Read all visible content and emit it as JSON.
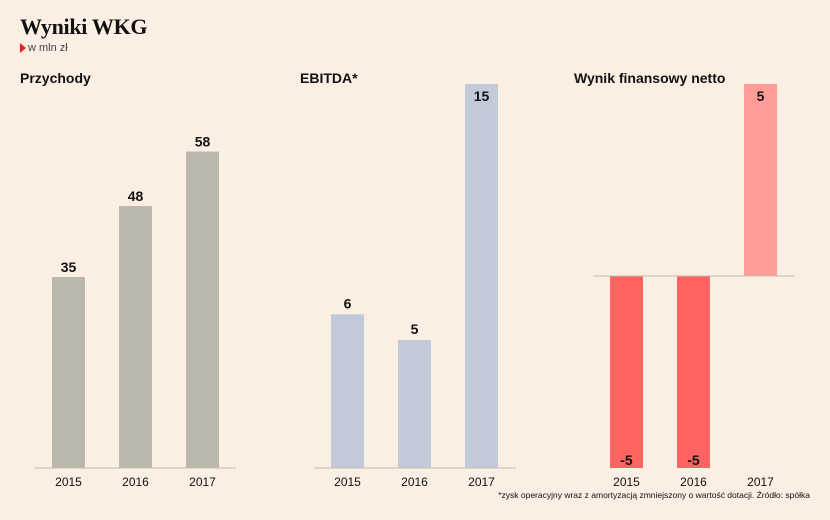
{
  "title": "Wyniki WKG",
  "subtitle": "w mln zł",
  "footnote": "*zysk operacyjny wraz z amortyzacją zmniejszony o wartość dotacji. Źródło: spółka",
  "colors": {
    "background": "#fbeee2",
    "revenue": "#b9b8ab",
    "ebitda": "#c2c9d8",
    "net_negative": "#ff6462",
    "net_positive": "#ff9c98",
    "axis": "#c8b9ac",
    "accent": "#e8232a"
  },
  "chart_data": [
    {
      "type": "bar",
      "title": "Przychody",
      "categories": [
        "2015",
        "2016",
        "2017"
      ],
      "values": [
        35,
        48,
        58
      ],
      "ylim": [
        0,
        68
      ]
    },
    {
      "type": "bar",
      "title": "EBITDA*",
      "categories": [
        "2015",
        "2016",
        "2017"
      ],
      "values": [
        6,
        5,
        15
      ],
      "ylim": [
        0,
        15
      ]
    },
    {
      "type": "bar",
      "title": "Wynik finansowy netto",
      "categories": [
        "2015",
        "2016",
        "2017"
      ],
      "values": [
        -5,
        -5,
        5
      ],
      "ylim": [
        -5,
        5
      ]
    }
  ]
}
